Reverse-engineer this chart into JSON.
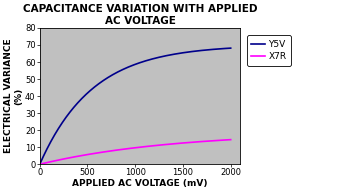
{
  "title": "CAPACITANCE VARIATION WITH APPLIED\nAC VOLTAGE",
  "xlabel": "APPLIED AC VOLTAGE (mV)",
  "ylabel": "ELECTRICAL VARIANCE\n(%)",
  "xlim": [
    0,
    2100
  ],
  "ylim": [
    0,
    80
  ],
  "xticks": [
    0,
    500,
    1000,
    1500,
    2000
  ],
  "yticks": [
    0,
    10,
    20,
    30,
    40,
    50,
    60,
    70,
    80
  ],
  "plot_bg_color": "#c0c0c0",
  "outer_bg_color": "#ffffff",
  "y5v_color": "#00008B",
  "x7r_color": "#FF00FF",
  "legend_labels": [
    "Y5V",
    "X7R"
  ],
  "title_fontsize": 7.5,
  "axis_label_fontsize": 6.5,
  "tick_fontsize": 6,
  "legend_fontsize": 6.5
}
